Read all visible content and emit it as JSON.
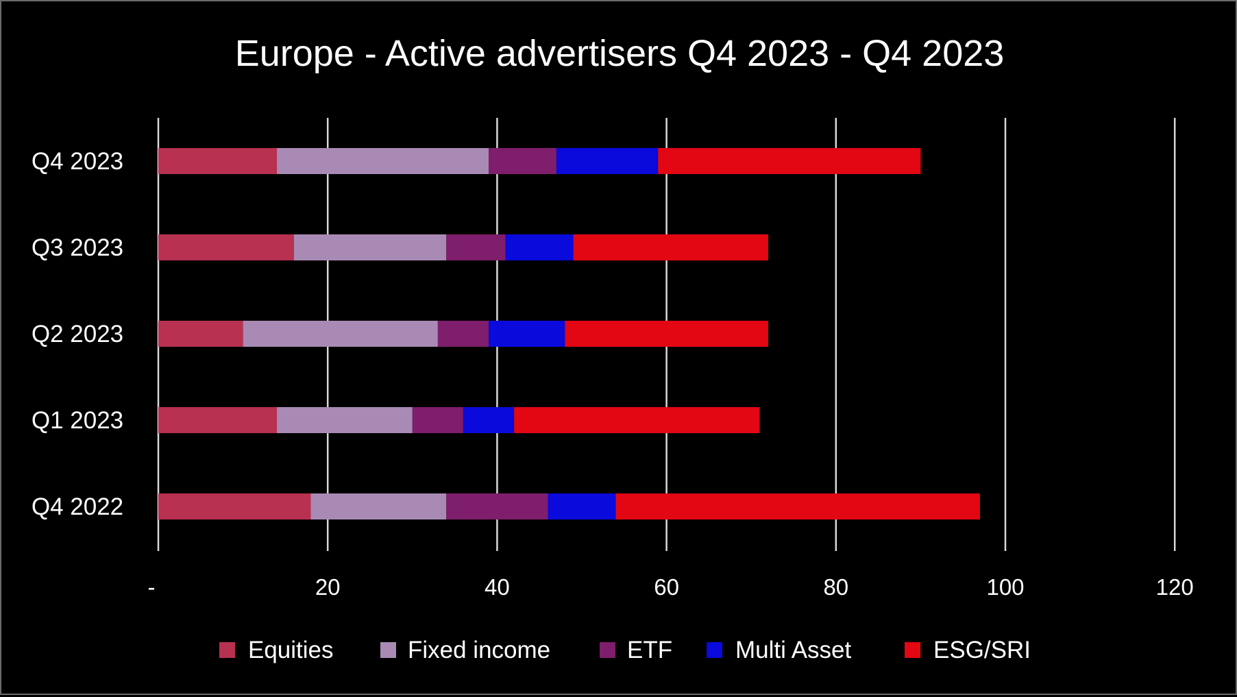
{
  "chart_data": {
    "type": "bar",
    "orientation": "horizontal",
    "stacked": true,
    "title": "Europe - Active advertisers Q4 2023 - Q4 2023",
    "categories": [
      "Q4 2023",
      "Q3 2023",
      "Q2 2023",
      "Q1 2023",
      "Q4 2022"
    ],
    "series": [
      {
        "name": "Equities",
        "color": "#b83150",
        "values": [
          14,
          16,
          10,
          14,
          18
        ]
      },
      {
        "name": "Fixed income",
        "color": "#a98ab4",
        "values": [
          25,
          18,
          23,
          16,
          16
        ]
      },
      {
        "name": "ETF",
        "color": "#7e1e6c",
        "values": [
          8,
          7,
          6,
          6,
          12
        ]
      },
      {
        "name": "Multi Asset",
        "color": "#0a0adc",
        "values": [
          12,
          8,
          9,
          6,
          8
        ]
      },
      {
        "name": "ESG/SRI",
        "color": "#e30613",
        "values": [
          31,
          23,
          24,
          29,
          43
        ]
      }
    ],
    "xlim": [
      0,
      120
    ],
    "xticks": [
      0,
      20,
      40,
      60,
      80,
      100,
      120
    ],
    "xtick_labels": [
      "-",
      "20",
      "40",
      "60",
      "80",
      "100",
      "120"
    ],
    "grid": "vertical",
    "legend": "bottom",
    "background": "#000000"
  }
}
